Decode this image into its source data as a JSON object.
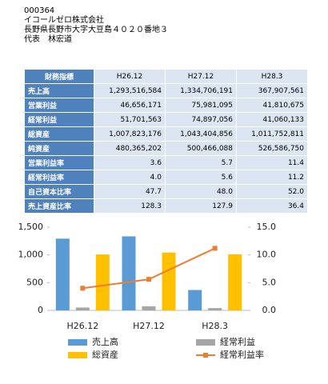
{
  "header": {
    "code": "000364",
    "company": "イコールゼロ株式会社",
    "address": "長野県長野市大字大豆島４０２０番地３",
    "representative": "代表　林宏道"
  },
  "table": {
    "header": [
      "財務指標",
      "H26.12",
      "H27.12",
      "H28.3"
    ],
    "rows": [
      [
        "売上高",
        "1,293,516,584",
        "1,334,706,191",
        "367,907,561"
      ],
      [
        "営業利益",
        "46,656,171",
        "75,981,095",
        "41,810,675"
      ],
      [
        "経常利益",
        "51,701,563",
        "74,897,056",
        "41,060,133"
      ],
      [
        "総資産",
        "1,007,823,176",
        "1,043,404,856",
        "1,011,752,811"
      ],
      [
        "純資産",
        "480,365,202",
        "500,466,088",
        "526,586,750"
      ],
      [
        "営業利益率",
        "3.6",
        "5.7",
        "11.4"
      ],
      [
        "経常利益率",
        "4.0",
        "5.6",
        "11.2"
      ],
      [
        "自己資本比率",
        "47.7",
        "48.0",
        "52.0"
      ],
      [
        "売上資産比率",
        "128.3",
        "127.9",
        "36.4"
      ]
    ]
  },
  "chart_data": {
    "type": "bar",
    "categories": [
      "H26.12",
      "H27.12",
      "H28.3"
    ],
    "series": [
      {
        "name": "売上高",
        "color": "#5b9bd5",
        "values": [
          1293.5,
          1334.7,
          367.9
        ]
      },
      {
        "name": "経常利益",
        "color": "#a5a5a5",
        "values": [
          51.7,
          74.9,
          41.1
        ]
      },
      {
        "name": "総資産",
        "color": "#ffc000",
        "values": [
          1007.8,
          1043.4,
          1011.8
        ]
      },
      {
        "name": "経常利益率",
        "color": "#ed7d31",
        "type": "line",
        "axis": "y2",
        "values": [
          4.0,
          5.6,
          11.2
        ]
      }
    ],
    "ylim": [
      0,
      1500
    ],
    "yticks": [
      0,
      500,
      {
        "value": 1000,
        "label": "1,000"
      },
      {
        "value": 1500,
        "label": "1,500"
      }
    ],
    "y2lim": [
      0,
      15
    ],
    "y2ticks": [
      {
        "value": 0,
        "label": "0.0"
      },
      {
        "value": 5,
        "label": "5.0"
      },
      {
        "value": 10,
        "label": "10.0"
      },
      {
        "value": 15,
        "label": "15.0"
      }
    ]
  }
}
